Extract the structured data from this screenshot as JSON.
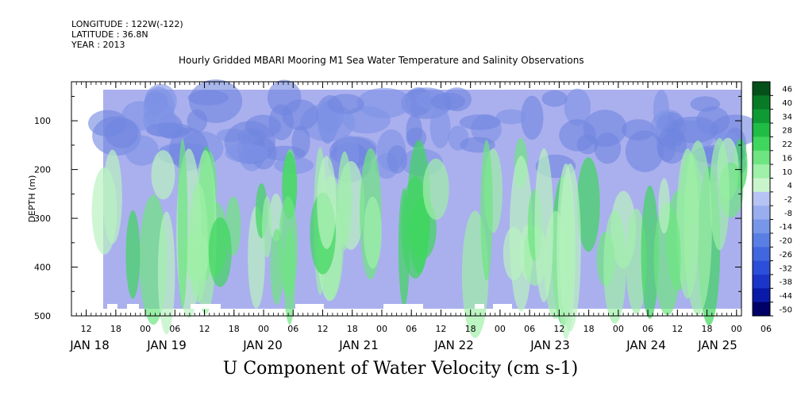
{
  "header": {
    "longitude": "LONGITUDE : 122W(-122)",
    "latitude": "LATITUDE : 36.8N",
    "year": "YEAR : 2013"
  },
  "title": "Hourly Gridded MBARI Mooring M1 Sea Water Temperature and Salinity Observations",
  "chart_data": {
    "type": "heatmap",
    "title": "Hourly Gridded MBARI Mooring M1 Sea Water Temperature and Salinity Observations",
    "xlabel": "U Component of Water Velocity (cm s-1)",
    "ylabel": "DEPTH (m)",
    "y_axis": {
      "range": [
        500,
        20
      ],
      "reversed": true,
      "ticks": [
        100,
        200,
        300,
        400,
        500
      ],
      "tick_labels": [
        "100",
        "200",
        "300",
        "400",
        "500"
      ]
    },
    "x_axis": {
      "range_hours": [
        -15,
        121
      ],
      "hour_ticks": [
        {
          "h": -12,
          "label": "12"
        },
        {
          "h": -6,
          "label": "18"
        },
        {
          "h": 0,
          "label": "00"
        },
        {
          "h": 6,
          "label": "06"
        },
        {
          "h": 12,
          "label": "12"
        },
        {
          "h": 18,
          "label": "18"
        },
        {
          "h": 24,
          "label": "00"
        },
        {
          "h": 30,
          "label": "06"
        },
        {
          "h": 36,
          "label": "12"
        },
        {
          "h": 42,
          "label": "18"
        },
        {
          "h": 48,
          "label": "00"
        },
        {
          "h": 54,
          "label": "06"
        },
        {
          "h": 60,
          "label": "12"
        },
        {
          "h": 66,
          "label": "18"
        },
        {
          "h": 72,
          "label": "00"
        },
        {
          "h": 78,
          "label": "06"
        },
        {
          "h": 84,
          "label": "12"
        },
        {
          "h": 90,
          "label": "18"
        },
        {
          "h": 96,
          "label": "00"
        },
        {
          "h": 102,
          "label": "06"
        },
        {
          "h": 108,
          "label": "12"
        },
        {
          "h": 114,
          "label": "18"
        },
        {
          "h": 120,
          "label": "00"
        },
        {
          "h": 126,
          "label": "06"
        }
      ],
      "date_labels": [
        {
          "h": -12,
          "label": "JAN 18"
        },
        {
          "h": 12,
          "label": "JAN 19"
        },
        {
          "h": 36,
          "label": "JAN 20"
        },
        {
          "h": 60,
          "label": "JAN 21"
        },
        {
          "h": 84,
          "label": "JAN 22"
        },
        {
          "h": 108,
          "label": "JAN 23"
        },
        {
          "h": 132,
          "label": "JAN 24"
        },
        {
          "h": 150,
          "label": "JAN 25"
        }
      ]
    },
    "colorbar": {
      "levels": [
        -50,
        -44,
        -38,
        -32,
        -26,
        -20,
        -14,
        -8,
        -2,
        4,
        10,
        16,
        22,
        28,
        34,
        40,
        46
      ],
      "labels": [
        "46",
        "40",
        "34",
        "28",
        "22",
        "16",
        "10",
        "4",
        "-2",
        "-8",
        "-14",
        "-20",
        "-26",
        "-32",
        "-38",
        "-44",
        "-50"
      ]
    },
    "grid": false
  }
}
